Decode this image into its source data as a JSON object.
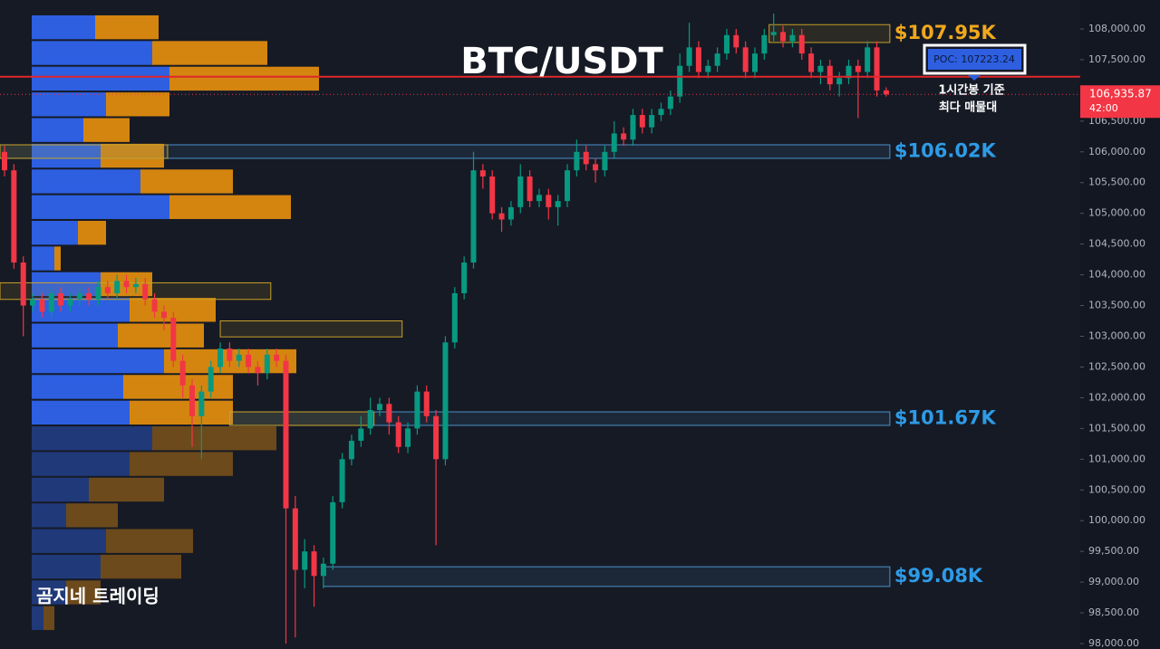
{
  "chart_data": {
    "type": "candlestick",
    "title": "BTC/USDT",
    "watermark": "곰지네 트레이딩",
    "ylim": [
      97912,
      108471
    ],
    "yticks": [
      {
        "value": 98000,
        "label": "98,000.00"
      },
      {
        "value": 98500,
        "label": "98,500.00"
      },
      {
        "value": 99000,
        "label": "99,000.00"
      },
      {
        "value": 99500,
        "label": "99,500.00"
      },
      {
        "value": 100000,
        "label": "100,000.00"
      },
      {
        "value": 100500,
        "label": "100,500.00"
      },
      {
        "value": 101000,
        "label": "101,000.00"
      },
      {
        "value": 101500,
        "label": "101,500.00"
      },
      {
        "value": 102000,
        "label": "102,000.00"
      },
      {
        "value": 102500,
        "label": "102,500.00"
      },
      {
        "value": 103000,
        "label": "103,000.00"
      },
      {
        "value": 103500,
        "label": "103,500.00"
      },
      {
        "value": 104000,
        "label": "104,000.00"
      },
      {
        "value": 104500,
        "label": "104,500.00"
      },
      {
        "value": 105000,
        "label": "105,000.00"
      },
      {
        "value": 105500,
        "label": "105,500.00"
      },
      {
        "value": 106000,
        "label": "106,000.00"
      },
      {
        "value": 106500,
        "label": "106,500.00"
      },
      {
        "value": 107000,
        "label": "107,000.00"
      },
      {
        "value": 107500,
        "label": "107,500.00"
      },
      {
        "value": 108000,
        "label": "108,000.00"
      }
    ],
    "up_color": "#089981",
    "down_color": "#f23645",
    "open": [
      106000,
      105700,
      104200,
      103500,
      103600,
      103400,
      103700,
      103500,
      103600,
      103700,
      103600,
      103800,
      103700,
      103900,
      103800,
      103850,
      103600,
      103400,
      103300,
      102600,
      102200,
      101700,
      102100,
      102500,
      102800,
      102600,
      102700,
      102500,
      102400,
      102700,
      102600,
      100200,
      99200,
      99500,
      99100,
      99300,
      100300,
      101000,
      101300,
      101500,
      101800,
      101900,
      101600,
      101200,
      101500,
      102100,
      101700,
      101000,
      102900,
      103700,
      104200,
      105700,
      105600,
      105000,
      104900,
      105100,
      105600,
      105200,
      105300,
      105100,
      105200,
      105700,
      106000,
      105800,
      105700,
      106000,
      106300,
      106200,
      106600,
      106400,
      106600,
      106700,
      106900,
      107400,
      107700,
      107300,
      107400,
      107600,
      107900,
      107700,
      107300,
      107600,
      107900,
      107950,
      107800,
      107900,
      107600,
      107300,
      107400,
      107100,
      107200,
      107400,
      107300,
      107700,
      107000
    ],
    "high": [
      106100,
      105800,
      104300,
      103700,
      103700,
      103800,
      103800,
      103700,
      103800,
      103800,
      103900,
      103900,
      104000,
      104000,
      103950,
      103950,
      103700,
      103500,
      103400,
      102700,
      102300,
      102200,
      102600,
      102900,
      102900,
      102800,
      102800,
      102600,
      102800,
      102800,
      102700,
      100400,
      99700,
      99600,
      99400,
      100400,
      101100,
      101400,
      101700,
      102000,
      102000,
      102000,
      101700,
      101600,
      102200,
      102200,
      101800,
      103000,
      103800,
      104300,
      106000,
      105800,
      105700,
      105100,
      105200,
      105800,
      105700,
      105400,
      105400,
      105300,
      105800,
      106200,
      106100,
      105900,
      106100,
      106500,
      106400,
      106700,
      106700,
      106700,
      106800,
      107000,
      107600,
      108100,
      107800,
      107500,
      107700,
      108000,
      108000,
      107800,
      107700,
      108000,
      108250,
      108050,
      108000,
      108000,
      107700,
      107500,
      107500,
      107300,
      107500,
      107500,
      107800,
      107800,
      107050
    ],
    "low": [
      105600,
      104100,
      103000,
      103400,
      103300,
      103300,
      103400,
      103400,
      103500,
      103500,
      103500,
      103600,
      103600,
      103700,
      103700,
      103500,
      103300,
      103100,
      102500,
      102000,
      101200,
      101000,
      102000,
      102400,
      102500,
      102500,
      102400,
      102200,
      102300,
      102500,
      98000,
      98100,
      98900,
      98600,
      98900,
      99200,
      100200,
      100900,
      101200,
      101400,
      101700,
      101400,
      101100,
      101100,
      101400,
      101600,
      99600,
      100900,
      102800,
      103600,
      104100,
      105400,
      104900,
      104700,
      104800,
      105000,
      105100,
      105100,
      104900,
      104800,
      105100,
      105600,
      105700,
      105500,
      105600,
      105900,
      106100,
      106100,
      106300,
      106300,
      106500,
      106600,
      106800,
      107300,
      107200,
      107200,
      107300,
      107500,
      107600,
      107200,
      107200,
      107500,
      107800,
      107700,
      107700,
      107500,
      107200,
      107100,
      107000,
      106900,
      107100,
      106550,
      107200,
      106900,
      106900
    ],
    "close": [
      105700,
      104200,
      103500,
      103600,
      103400,
      103700,
      103500,
      103600,
      103700,
      103600,
      103800,
      103700,
      103900,
      103800,
      103850,
      103600,
      103400,
      103300,
      102600,
      102200,
      101700,
      102100,
      102500,
      102800,
      102600,
      102700,
      102500,
      102400,
      102700,
      102600,
      100200,
      99200,
      99500,
      99100,
      99300,
      100300,
      101000,
      101300,
      101500,
      101800,
      101900,
      101600,
      101200,
      101500,
      102100,
      101700,
      101000,
      102900,
      103700,
      104200,
      105700,
      105600,
      105000,
      104900,
      105100,
      105600,
      105200,
      105300,
      105100,
      105200,
      105700,
      106000,
      105800,
      105700,
      106000,
      106300,
      106200,
      106600,
      106400,
      106600,
      106700,
      106900,
      107400,
      107700,
      107300,
      107400,
      107600,
      107900,
      107700,
      107300,
      107600,
      107900,
      107950,
      107800,
      107900,
      107600,
      107300,
      107400,
      107100,
      107200,
      107400,
      107300,
      107700,
      107000,
      106936
    ],
    "volume_profile": {
      "range": [
        108236,
        98206
      ],
      "buy_color": "#2d5fe0",
      "sell_color": "#d4850f",
      "dim_from_row": 16,
      "buy": [
        70,
        133,
        152,
        82,
        57,
        76,
        120,
        152,
        51,
        25,
        76,
        108,
        95,
        146,
        101,
        108,
        133,
        108,
        63,
        38,
        82,
        76,
        38,
        13
      ],
      "sell": [
        70,
        127,
        165,
        70,
        51,
        70,
        102,
        134,
        31,
        7,
        57,
        95,
        95,
        146,
        121,
        114,
        137,
        114,
        83,
        57,
        96,
        89,
        38,
        12
      ]
    },
    "zones": [
      {
        "top": 108070,
        "bottom": 107780,
        "start": 82,
        "end": 94,
        "color": "#c9a227",
        "label": "$107.95K"
      },
      {
        "top": 106115,
        "bottom": 105895,
        "start": 0,
        "end": 94,
        "color": "#4a90c8",
        "label": "$106.02K"
      },
      {
        "top": 101770,
        "bottom": 101550,
        "start": 24,
        "end": 94,
        "color": "#4a90c8",
        "label": "$101.67K"
      },
      {
        "top": 99250,
        "bottom": 98930,
        "start": 34,
        "end": 94,
        "color": "#4a90c8",
        "label": "$99.08K"
      },
      {
        "top": 106115,
        "bottom": 105895,
        "start": 0,
        "end": 17,
        "color": "#c9a227"
      },
      {
        "top": 103870,
        "bottom": 103600,
        "start": 0,
        "end": 28,
        "color": "#c9a227"
      },
      {
        "top": 103250,
        "bottom": 102990,
        "start": 23,
        "end": 42,
        "color": "#c9a227"
      },
      {
        "top": 101770,
        "bottom": 101550,
        "start": 24,
        "end": 39,
        "color": "#c9a227"
      }
    ],
    "label_colors": {
      "$107.95K": "#f0a81c"
    },
    "poc": {
      "value": 107223.24,
      "label": "POC: 107223.24",
      "color": "#e0262b"
    },
    "annotation": [
      "1시간봉 기준",
      "최다 매물대"
    ],
    "last_price": {
      "value": 106935.87,
      "label": "106,935.87",
      "countdown": "42:00",
      "color": "#f23645"
    }
  }
}
